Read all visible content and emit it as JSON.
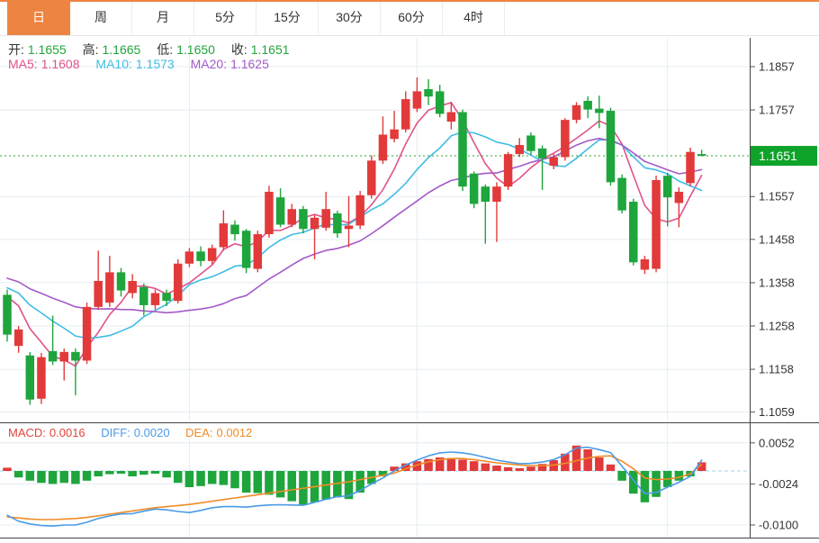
{
  "tabs": {
    "selected": "日",
    "items": [
      {
        "label": "日",
        "active": true
      },
      {
        "label": "周",
        "active": false
      },
      {
        "label": "月",
        "active": false
      },
      {
        "label": "5分",
        "active": false
      },
      {
        "label": "15分",
        "active": false
      },
      {
        "label": "30分",
        "active": false
      },
      {
        "label": "60分",
        "active": false
      },
      {
        "label": "4时",
        "active": false
      }
    ]
  },
  "legend": {
    "open_label": "开:",
    "open": "1.1655",
    "high_label": "高:",
    "high": "1.1665",
    "low_label": "低:",
    "low": "1.1650",
    "close_label": "收:",
    "close": "1.1651",
    "ma5_label": "MA5:",
    "ma5": "1.1608",
    "ma10_label": "MA10:",
    "ma10": "1.1573",
    "ma20_label": "MA20:",
    "ma20": "1.1625"
  },
  "macd_legend": {
    "macd_label": "MACD:",
    "macd": "0.0016",
    "diff_label": "DIFF:",
    "diff": "0.0020",
    "dea_label": "DEA:",
    "dea": "0.0012"
  },
  "colors": {
    "up_candle": "#e23a3a",
    "down_candle": "#1ea53c",
    "ma5": "#e2518a",
    "ma10": "#3fbce6",
    "ma20": "#a45ac8",
    "diff_line": "#4a9be6",
    "dea_line": "#ef8c28",
    "macd_value": "#e2443a",
    "ohlc_value": "#21a53c",
    "price_line": "#2ca52c",
    "price_tag_bg": "#0fa32a",
    "tab_active_bg": "#ee8442",
    "grid": "#e4ecf2",
    "axis_text": "#333333",
    "separator": "#444444",
    "macd_zero_dash": "#9fd4e8"
  },
  "chart_data": {
    "type": "candlestick_with_macd",
    "title": "",
    "timeframe": "日",
    "current_price": "1.1651",
    "current_price_value": 1.1651,
    "price_axis_ticks": [
      {
        "label": "1.1857",
        "price": 1.1857
      },
      {
        "label": "1.1757",
        "price": 1.1757
      },
      {
        "label": "1.1557",
        "price": 1.1557
      },
      {
        "label": "1.1458",
        "price": 1.1458
      },
      {
        "label": "1.1358",
        "price": 1.1358
      },
      {
        "label": "1.1258",
        "price": 1.1258
      },
      {
        "label": "1.1158",
        "price": 1.1158
      },
      {
        "label": "1.1059",
        "price": 1.1059
      }
    ],
    "grid_candle_indices": [
      16,
      36,
      58
    ],
    "ma_periods": [
      5,
      10,
      20
    ],
    "prior_closes": [
      1.1415,
      1.1408,
      1.1402,
      1.1396,
      1.139,
      1.1386,
      1.1382,
      1.1378,
      1.1375,
      1.1372,
      1.137,
      1.1368,
      1.1366,
      1.1364,
      1.1362,
      1.1358,
      1.1352,
      1.1345,
      1.1338
    ],
    "candles": [
      [
        1.133,
        1.1342,
        1.1222,
        1.1238
      ],
      [
        1.1212,
        1.1258,
        1.1196,
        1.125
      ],
      [
        1.119,
        1.1198,
        1.1076,
        1.1088
      ],
      [
        1.109,
        1.1196,
        1.1078,
        1.1186
      ],
      [
        1.12,
        1.1282,
        1.1168,
        1.1176
      ],
      [
        1.1176,
        1.1206,
        1.1132,
        1.1198
      ],
      [
        1.1198,
        1.1206,
        1.1098,
        1.1178
      ],
      [
        1.1178,
        1.1312,
        1.117,
        1.1302
      ],
      [
        1.1302,
        1.1432,
        1.1295,
        1.1362
      ],
      [
        1.1312,
        1.142,
        1.1302,
        1.1382
      ],
      [
        1.1382,
        1.1392,
        1.1326,
        1.134
      ],
      [
        1.1334,
        1.1378,
        1.1322,
        1.1362
      ],
      [
        1.1348,
        1.1356,
        1.1282,
        1.1306
      ],
      [
        1.1306,
        1.1342,
        1.1296,
        1.1334
      ],
      [
        1.1334,
        1.1342,
        1.1304,
        1.1316
      ],
      [
        1.1316,
        1.1412,
        1.131,
        1.1402
      ],
      [
        1.1402,
        1.1438,
        1.1394,
        1.143
      ],
      [
        1.143,
        1.1442,
        1.1396,
        1.1408
      ],
      [
        1.1408,
        1.1446,
        1.14,
        1.1438
      ],
      [
        1.144,
        1.1525,
        1.1432,
        1.1495
      ],
      [
        1.1492,
        1.1502,
        1.1455,
        1.147
      ],
      [
        1.1478,
        1.1482,
        1.138,
        1.1392
      ],
      [
        1.139,
        1.1478,
        1.1382,
        1.147
      ],
      [
        1.147,
        1.1582,
        1.1462,
        1.1568
      ],
      [
        1.1555,
        1.1576,
        1.1486,
        1.1492
      ],
      [
        1.1492,
        1.154,
        1.1486,
        1.1528
      ],
      [
        1.1528,
        1.1535,
        1.1472,
        1.1482
      ],
      [
        1.1482,
        1.1515,
        1.1412,
        1.1508
      ],
      [
        1.1485,
        1.1568,
        1.1478,
        1.1528
      ],
      [
        1.1518,
        1.1524,
        1.1462,
        1.1472
      ],
      [
        1.1482,
        1.1558,
        1.144,
        1.149
      ],
      [
        1.149,
        1.157,
        1.1482,
        1.156
      ],
      [
        1.156,
        1.1652,
        1.1552,
        1.164
      ],
      [
        1.164,
        1.1742,
        1.1632,
        1.17
      ],
      [
        1.169,
        1.1755,
        1.1682,
        1.1712
      ],
      [
        1.1712,
        1.18,
        1.1705,
        1.1782
      ],
      [
        1.176,
        1.1832,
        1.1752,
        1.18
      ],
      [
        1.1805,
        1.1828,
        1.1768,
        1.1788
      ],
      [
        1.18,
        1.1815,
        1.174,
        1.1748
      ],
      [
        1.173,
        1.1775,
        1.1712,
        1.1752
      ],
      [
        1.1752,
        1.1758,
        1.157,
        1.158
      ],
      [
        1.161,
        1.1615,
        1.153,
        1.154
      ],
      [
        1.158,
        1.1585,
        1.1448,
        1.1545
      ],
      [
        1.1545,
        1.159,
        1.1452,
        1.158
      ],
      [
        1.158,
        1.166,
        1.1572,
        1.1655
      ],
      [
        1.1655,
        1.1692,
        1.1648,
        1.1676
      ],
      [
        1.1698,
        1.1705,
        1.1652,
        1.1662
      ],
      [
        1.1668,
        1.1675,
        1.1572,
        1.1645
      ],
      [
        1.1628,
        1.1655,
        1.162,
        1.1648
      ],
      [
        1.1648,
        1.1738,
        1.164,
        1.1734
      ],
      [
        1.1734,
        1.1775,
        1.1726,
        1.1768
      ],
      [
        1.1778,
        1.1788,
        1.1738,
        1.1758
      ],
      [
        1.176,
        1.179,
        1.1715,
        1.175
      ],
      [
        1.1755,
        1.1762,
        1.1582,
        1.159
      ],
      [
        1.16,
        1.1608,
        1.1518,
        1.1525
      ],
      [
        1.1545,
        1.1552,
        1.1398,
        1.1405
      ],
      [
        1.1388,
        1.142,
        1.1378,
        1.1412
      ],
      [
        1.139,
        1.1605,
        1.1382,
        1.1595
      ],
      [
        1.1605,
        1.1612,
        1.1488,
        1.1555
      ],
      [
        1.1542,
        1.1578,
        1.1486,
        1.1568
      ],
      [
        1.1588,
        1.167,
        1.158,
        1.166
      ],
      [
        1.1655,
        1.1665,
        1.165,
        1.1651
      ]
    ],
    "macd": {
      "axis_ticks": [
        {
          "label": "0.0052",
          "value": 0.0052
        },
        {
          "label": "-0.0024",
          "value": -0.0024
        },
        {
          "label": "-0.0100",
          "value": -0.01
        }
      ],
      "hist": [
        0.0006,
        -0.0012,
        -0.0018,
        -0.0022,
        -0.0024,
        -0.0022,
        -0.0024,
        -0.0018,
        -0.001,
        -0.0006,
        -0.0005,
        -0.001,
        -0.0007,
        -0.0005,
        -0.0012,
        -0.0022,
        -0.003,
        -0.0028,
        -0.0024,
        -0.0026,
        -0.0032,
        -0.004,
        -0.0041,
        -0.0044,
        -0.0049,
        -0.0056,
        -0.0063,
        -0.0058,
        -0.0053,
        -0.0049,
        -0.0052,
        -0.004,
        -0.0024,
        -0.001,
        0.0008,
        0.0014,
        0.0018,
        0.0022,
        0.0025,
        0.0024,
        0.0021,
        0.0018,
        0.0014,
        0.001,
        0.0007,
        0.0005,
        0.0008,
        0.0013,
        0.002,
        0.0032,
        0.0047,
        0.004,
        0.0025,
        0.0012,
        -0.0018,
        -0.0042,
        -0.0058,
        -0.0048,
        -0.003,
        -0.0018,
        -0.001,
        0.0016
      ],
      "dea": [
        -0.0085,
        -0.0087,
        -0.0089,
        -0.009,
        -0.009,
        -0.0089,
        -0.0088,
        -0.0086,
        -0.0083,
        -0.008,
        -0.0077,
        -0.0074,
        -0.0071,
        -0.0068,
        -0.0066,
        -0.0064,
        -0.0062,
        -0.0059,
        -0.0056,
        -0.0053,
        -0.005,
        -0.0047,
        -0.0044,
        -0.0041,
        -0.0038,
        -0.0035,
        -0.0032,
        -0.0029,
        -0.0026,
        -0.0023,
        -0.002,
        -0.0016,
        -0.0012,
        -0.0008,
        -0.0004,
        0.0004,
        0.0011,
        0.0017,
        0.0021,
        0.0023,
        0.0023,
        0.0021,
        0.0018,
        0.0015,
        0.0013,
        0.0011,
        0.001,
        0.001,
        0.0011,
        0.0014,
        0.0019,
        0.0024,
        0.0027,
        0.0028,
        0.0018,
        0.0004,
        -0.0013,
        -0.0016,
        -0.0015,
        -0.0012,
        -0.0005,
        0.0012
      ]
    }
  }
}
